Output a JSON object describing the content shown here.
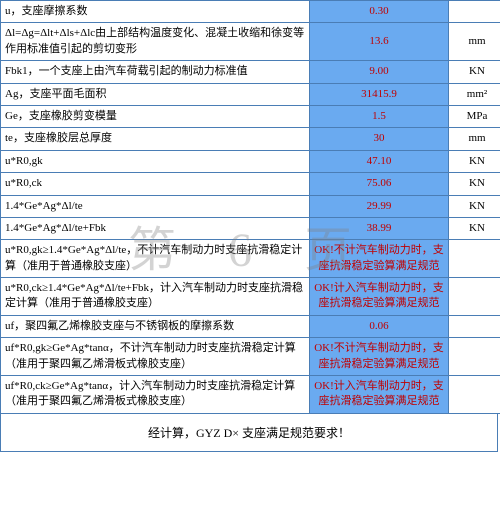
{
  "watermark": "第 6 页",
  "rows": [
    {
      "label": "u，支座摩擦系数",
      "value": "0.30",
      "unit": ""
    },
    {
      "label": "Δl=Δg=Δlt+Δls+Δlc由上部结构温度变化、混凝土收缩和徐变等作用标准值引起的剪切变形",
      "value": "13.6",
      "unit": "mm"
    },
    {
      "label": "Fbk1，一个支座上由汽车荷载引起的制动力标准值",
      "value": "9.00",
      "unit": "KN"
    },
    {
      "label": "Ag，支座平面毛面积",
      "value": "31415.9",
      "unit": "mm²"
    },
    {
      "label": "Ge，支座橡胶剪变模量",
      "value": "1.5",
      "unit": "MPa"
    },
    {
      "label": "te，支座橡胶层总厚度",
      "value": "30",
      "unit": "mm"
    },
    {
      "label": "u*R0,gk",
      "value": "47.10",
      "unit": "KN"
    },
    {
      "label": "u*R0,ck",
      "value": "75.06",
      "unit": "KN"
    },
    {
      "label": "1.4*Ge*Ag*Δl/te",
      "value": "29.99",
      "unit": "KN"
    },
    {
      "label": "1.4*Ge*Ag*Δl/te+Fbk",
      "value": "38.99",
      "unit": "KN"
    },
    {
      "label": "u*R0,gk≥1.4*Ge*Ag*Δl/te，不计汽车制动力时支座抗滑稳定计算（准用于普通橡胶支座）",
      "value": "OK!不计汽车制动力时，支座抗滑稳定验算满足规范",
      "unit": ""
    },
    {
      "label": "u*R0,ck≥1.4*Ge*Ag*Δl/te+Fbk，计入汽车制动力时支座抗滑稳定计算（准用于普通橡胶支座）",
      "value": "OK!计入汽车制动力时，支座抗滑稳定验算满足规范",
      "unit": ""
    },
    {
      "label": "uf，聚四氟乙烯橡胶支座与不锈钢板的摩擦系数",
      "value": "0.06",
      "unit": ""
    },
    {
      "label": "uf*R0,gk≥Ge*Ag*tanα，不计汽车制动力时支座抗滑稳定计算（准用于聚四氟乙烯滑板式橡胶支座）",
      "value": "OK!不计汽车制动力时，支座抗滑稳定验算满足规范",
      "unit": ""
    },
    {
      "label": "uf*R0,ck≥Ge*Ag*tanα，计入汽车制动力时支座抗滑稳定计算（准用于聚四氟乙烯滑板式橡胶支座）",
      "value": "OK!计入汽车制动力时，支座抗滑稳定验算满足规范",
      "unit": ""
    }
  ],
  "conclusion": "经计算，GYZ D× 支座满足规范要求！",
  "colors": {
    "border": "#4a7db5",
    "value_bg": "#6aaaf0",
    "value_text": "#c00000"
  }
}
